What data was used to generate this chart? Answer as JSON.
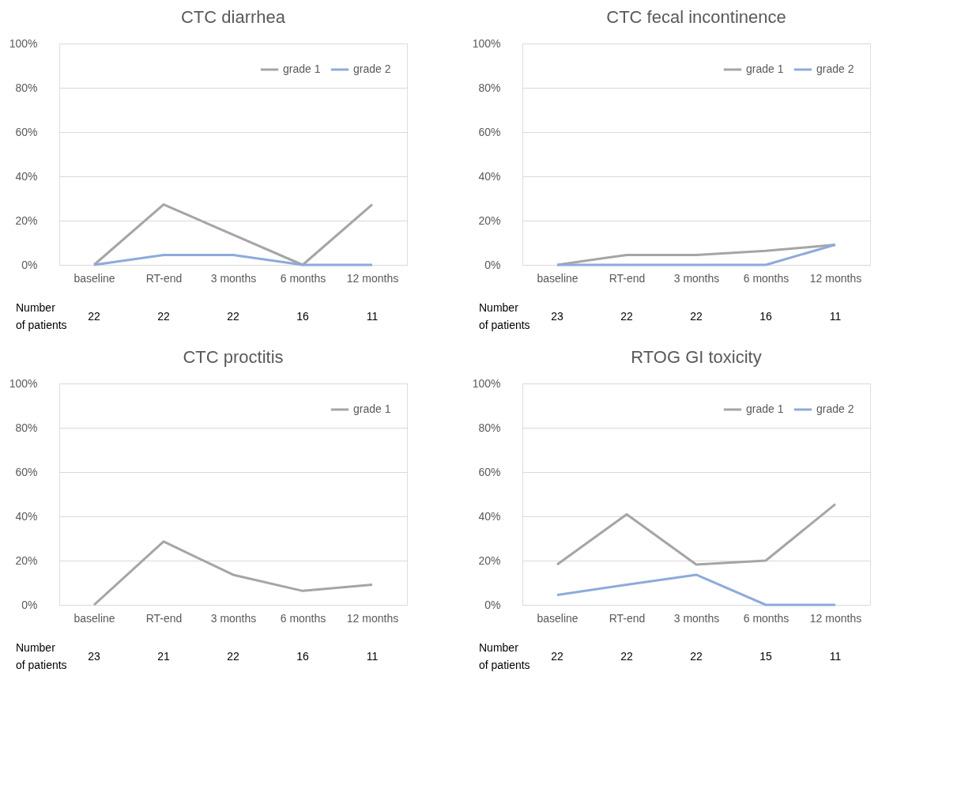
{
  "chart_data": [
    {
      "type": "line",
      "title": "CTC diarrhea",
      "categories": [
        "baseline",
        "RT-end",
        "3 months",
        "6 months",
        "12 months"
      ],
      "series": [
        {
          "name": "grade 1",
          "color": "#a5a5a5",
          "values": [
            0,
            27.3,
            13.6,
            0,
            27.3
          ]
        },
        {
          "name": "grade 2",
          "color": "#8eaadb",
          "values": [
            0,
            4.5,
            4.5,
            0,
            0
          ]
        }
      ],
      "ylim": [
        0,
        100
      ],
      "yticks": [
        {
          "value": 0,
          "label": "0%"
        },
        {
          "value": 20,
          "label": "20%"
        },
        {
          "value": 40,
          "label": "40%"
        },
        {
          "value": 60,
          "label": "60%"
        },
        {
          "value": 80,
          "label": "80%"
        },
        {
          "value": 100,
          "label": "100%"
        }
      ],
      "grid": "y",
      "legend": "top right",
      "marker": "none",
      "line_style": "solid",
      "annotations": [
        "Number\nof patients",
        "22",
        "22",
        "22",
        "16",
        "11"
      ]
    },
    {
      "type": "line",
      "title": "CTC fecal incontinence",
      "categories": [
        "baseline",
        "RT-end",
        "3 months",
        "6 months",
        "12 months"
      ],
      "series": [
        {
          "name": "grade 1",
          "color": "#a5a5a5",
          "values": [
            0,
            4.5,
            4.5,
            6.3,
            9.1
          ]
        },
        {
          "name": "grade 2",
          "color": "#8eaadb",
          "values": [
            0,
            0,
            0,
            0,
            9.1
          ]
        }
      ],
      "ylim": [
        0,
        100
      ],
      "yticks": [
        {
          "value": 0,
          "label": "0%"
        },
        {
          "value": 20,
          "label": "20%"
        },
        {
          "value": 40,
          "label": "40%"
        },
        {
          "value": 60,
          "label": "60%"
        },
        {
          "value": 80,
          "label": "80%"
        },
        {
          "value": 100,
          "label": "100%"
        }
      ],
      "grid": "y",
      "legend": "top right",
      "marker": "none",
      "line_style": "solid",
      "annotations": [
        "Number\nof patients",
        "23",
        "22",
        "22",
        "16",
        "11"
      ]
    },
    {
      "type": "line",
      "title": "CTC proctitis",
      "categories": [
        "baseline",
        "RT-end",
        "3 months",
        "6 months",
        "12 months"
      ],
      "series": [
        {
          "name": "grade 1",
          "color": "#a5a5a5",
          "values": [
            0,
            28.6,
            13.6,
            6.3,
            9.1
          ]
        }
      ],
      "ylim": [
        0,
        100
      ],
      "yticks": [
        {
          "value": 0,
          "label": "0%"
        },
        {
          "value": 20,
          "label": "20%"
        },
        {
          "value": 40,
          "label": "40%"
        },
        {
          "value": 60,
          "label": "60%"
        },
        {
          "value": 80,
          "label": "80%"
        },
        {
          "value": 100,
          "label": "100%"
        }
      ],
      "grid": "y",
      "legend": "top right",
      "marker": "none",
      "line_style": "solid",
      "annotations": [
        "Number\nof patients",
        "23",
        "21",
        "22",
        "16",
        "11"
      ]
    },
    {
      "type": "line",
      "title": "RTOG GI toxicity",
      "categories": [
        "baseline",
        "RT-end",
        "3 months",
        "6 months",
        "12 months"
      ],
      "series": [
        {
          "name": "grade 1",
          "color": "#a5a5a5",
          "values": [
            18.2,
            40.9,
            18.2,
            20,
            45.5
          ]
        },
        {
          "name": "grade 2",
          "color": "#8eaadb",
          "values": [
            4.5,
            9.1,
            13.6,
            0,
            0
          ]
        }
      ],
      "ylim": [
        0,
        100
      ],
      "yticks": [
        {
          "value": 0,
          "label": "0%"
        },
        {
          "value": 20,
          "label": "20%"
        },
        {
          "value": 40,
          "label": "40%"
        },
        {
          "value": 60,
          "label": "60%"
        },
        {
          "value": 80,
          "label": "80%"
        },
        {
          "value": 100,
          "label": "100%"
        }
      ],
      "grid": "y",
      "legend": "top right",
      "marker": "none",
      "line_style": "solid",
      "annotations": [
        "Number\nof patients",
        "22",
        "22",
        "22",
        "15",
        "11"
      ]
    }
  ]
}
